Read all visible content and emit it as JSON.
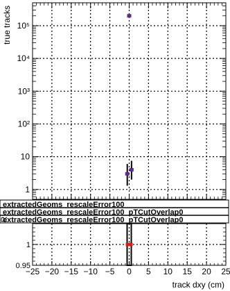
{
  "colors": {
    "frame": "#000000",
    "grid": "#000000",
    "series_a": "#5a2d82",
    "series_b": "#d6201f",
    "error_bar": "#000000",
    "legend_bg": "#ffffff"
  },
  "chart_data": [
    {
      "type": "scatter",
      "title": "",
      "xlabel": "",
      "ylabel": "true tracks",
      "yscale": "log",
      "xlim": [
        -25,
        25
      ],
      "ylim": [
        0.5,
        500000
      ],
      "ytick_values": [
        1,
        10,
        100,
        1000,
        10000,
        100000
      ],
      "ytick_labels": [
        "1",
        "10",
        "10²",
        "10³",
        "10⁴",
        "10⁵"
      ],
      "grid": true,
      "legend_position": "bottom, spanning full width",
      "legend": [
        "extractedGeoms_rescaleError100",
        "extractedGeoms_rescaleError100_pTCutOverlap0",
        "extractedGeoms_rescaleError100_pTCutOverlap0"
      ],
      "series": [
        {
          "points": [
            {
              "x": -0.5,
              "y": 3,
              "y_low": 1.3,
              "y_high": 6
            },
            {
              "x": 0,
              "y": 200000,
              "y_low": 195000,
              "y_high": 205000
            },
            {
              "x": 0.6,
              "y": 4,
              "y_low": 2,
              "y_high": 7.5
            }
          ]
        }
      ]
    },
    {
      "type": "scatter",
      "title": "",
      "xlabel": "track dxy (cm)",
      "ylabel": "R",
      "xlim": [
        -25,
        25
      ],
      "ylim": [
        0.95,
        1.05
      ],
      "xtick_values": [
        -25,
        -20,
        -15,
        -10,
        -5,
        0,
        5,
        10,
        15,
        20,
        25
      ],
      "xtick_labels": [
        "−25",
        "−20",
        "−15",
        "−10",
        "−5",
        "0",
        "5",
        "10",
        "15",
        "20",
        "25"
      ],
      "ytick_values": [
        0.95,
        1
      ],
      "ytick_labels": [
        "0.95",
        "1"
      ],
      "grid": true,
      "series": [
        {
          "points": [
            {
              "x": 0,
              "y": 1.0
            }
          ]
        }
      ]
    }
  ]
}
